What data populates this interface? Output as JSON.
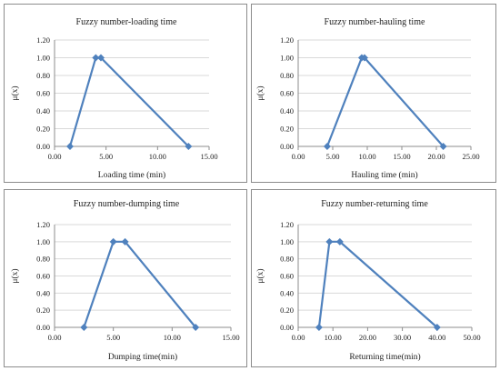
{
  "chart_data": [
    {
      "type": "line",
      "title": "Fuzzy number-loading time",
      "xlabel": "Loading time (min)",
      "ylabel": "μ(x)",
      "xlim": [
        0,
        15
      ],
      "ylim": [
        0,
        1.2
      ],
      "xticks": [
        "0.00",
        "5.00",
        "10.00",
        "15.00"
      ],
      "yticks": [
        "0.00",
        "0.20",
        "0.40",
        "0.60",
        "0.80",
        "1.00",
        "1.20"
      ],
      "grid": true,
      "series": [
        {
          "x": [
            1.5,
            4.0,
            4.5,
            13.0
          ],
          "y": [
            0,
            1,
            1,
            0
          ],
          "color": "#4f81bd"
        }
      ]
    },
    {
      "type": "line",
      "title": "Fuzzy number-hauling time",
      "xlabel": "Hauling time (min)",
      "ylabel": "μ(x)",
      "xlim": [
        0,
        25
      ],
      "ylim": [
        0,
        1.2
      ],
      "xticks": [
        "0.00",
        "5.00",
        "10.00",
        "15.00",
        "20.00",
        "25.00"
      ],
      "yticks": [
        "0.00",
        "0.20",
        "0.40",
        "0.60",
        "0.80",
        "1.00",
        "1.20"
      ],
      "grid": true,
      "series": [
        {
          "x": [
            4.2,
            9.2,
            9.6,
            21.0
          ],
          "y": [
            0,
            1,
            1,
            0
          ],
          "color": "#4f81bd"
        }
      ]
    },
    {
      "type": "line",
      "title": "Fuzzy number-dumping time",
      "xlabel": "Dumping time(min)",
      "ylabel": "μ(x)",
      "xlim": [
        0,
        15
      ],
      "ylim": [
        0,
        1.2
      ],
      "xticks": [
        "0.00",
        "5.00",
        "10.00",
        "15.00"
      ],
      "yticks": [
        "0.00",
        "0.20",
        "0.40",
        "0.60",
        "0.80",
        "1.00",
        "1.20"
      ],
      "grid": true,
      "series": [
        {
          "x": [
            2.5,
            5.0,
            6.0,
            12.0
          ],
          "y": [
            0,
            1,
            1,
            0
          ],
          "color": "#4f81bd"
        }
      ]
    },
    {
      "type": "line",
      "title": "Fuzzy number-returning time",
      "xlabel": "Returning time(min)",
      "ylabel": "μ(x)",
      "xlim": [
        0,
        50
      ],
      "ylim": [
        0,
        1.2
      ],
      "xticks": [
        "0.00",
        "10.00",
        "20.00",
        "30.00",
        "40.00",
        "50.00"
      ],
      "yticks": [
        "0.00",
        "0.20",
        "0.40",
        "0.60",
        "0.80",
        "1.00",
        "1.20"
      ],
      "grid": true,
      "series": [
        {
          "x": [
            6.0,
            9.0,
            12.0,
            40.0
          ],
          "y": [
            0,
            1,
            1,
            0
          ],
          "color": "#4f81bd"
        }
      ]
    }
  ]
}
